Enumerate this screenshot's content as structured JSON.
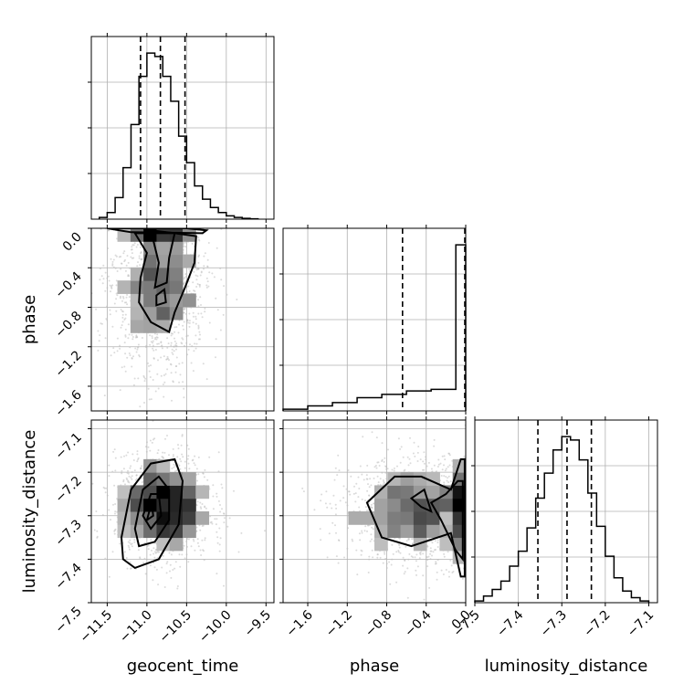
{
  "chart_data": {
    "type": "corner",
    "parameters": [
      "geocent_time",
      "phase",
      "luminosity_distance"
    ],
    "ranges": {
      "geocent_time": [
        -11.7,
        -9.4
      ],
      "phase": [
        -1.85,
        0.0
      ],
      "luminosity_distance": [
        -7.5,
        -7.08
      ]
    },
    "ticks": {
      "geocent_time": [
        -11.5,
        -11.0,
        -10.5,
        -10.0,
        -9.5
      ],
      "geocent_time_labels": [
        "−11.5",
        "−11.0",
        "−10.5",
        "−10.0",
        "−9.5"
      ],
      "phase": [
        -1.6,
        -1.2,
        -0.8,
        -0.4,
        0.0
      ],
      "phase_labels": [
        "−1.6",
        "−1.2",
        "−0.8",
        "−0.4",
        "0.0"
      ],
      "luminosity_distance": [
        -7.5,
        -7.4,
        -7.3,
        -7.2,
        -7.1
      ],
      "luminosity_distance_labels": [
        "−7.5",
        "−7.4",
        "−7.3",
        "−7.2",
        "−7.1"
      ]
    },
    "grid": true,
    "histograms": {
      "geocent_time": {
        "bin_edges": [
          -11.6,
          -11.5,
          -11.4,
          -11.3,
          -11.2,
          -11.1,
          -11.0,
          -10.9,
          -10.8,
          -10.7,
          -10.6,
          -10.5,
          -10.4,
          -10.3,
          -10.2,
          -10.1,
          -10.0,
          -9.9,
          -9.8,
          -9.7,
          -9.6
        ],
        "counts": [
          1,
          4,
          13,
          31,
          57,
          86,
          100,
          98,
          86,
          71,
          50,
          34,
          20,
          12,
          7,
          4,
          2,
          1,
          0.5,
          0.2
        ],
        "quantiles": [
          -11.08,
          -10.83,
          -10.52
        ]
      },
      "phase": {
        "bin_edges": [
          -1.85,
          -1.6,
          -1.35,
          -1.1,
          -0.85,
          -0.6,
          -0.35,
          -0.1,
          0.0
        ],
        "counts": [
          1,
          3,
          5,
          8,
          10,
          12,
          13,
          100
        ],
        "quantiles": [
          -0.64,
          0.0
        ]
      },
      "luminosity_distance": {
        "bin_edges": [
          -7.5,
          -7.48,
          -7.46,
          -7.44,
          -7.42,
          -7.4,
          -7.38,
          -7.36,
          -7.34,
          -7.32,
          -7.3,
          -7.28,
          -7.26,
          -7.24,
          -7.22,
          -7.2,
          -7.18,
          -7.16,
          -7.14,
          -7.12,
          -7.1
        ],
        "counts": [
          1,
          4,
          8,
          13,
          22,
          31,
          45,
          63,
          78,
          92,
          100,
          98,
          86,
          66,
          46,
          28,
          15,
          7,
          3,
          1
        ],
        "quantiles": [
          -7.355,
          -7.288,
          -7.232
        ]
      }
    },
    "scatter_2d": [
      {
        "x": "geocent_time",
        "y": "phase",
        "center": [
          -10.85,
          -0.55
        ],
        "spread": [
          0.3,
          0.45
        ],
        "n": 1400
      },
      {
        "x": "geocent_time",
        "y": "luminosity_distance",
        "center": [
          -10.8,
          -7.28
        ],
        "spread": [
          0.3,
          0.06
        ],
        "n": 1400
      },
      {
        "x": "phase",
        "y": "luminosity_distance",
        "center": [
          -0.45,
          -7.29
        ],
        "spread": [
          0.4,
          0.06
        ],
        "n": 1400
      }
    ],
    "contours": [
      {
        "x": "geocent_time",
        "y": "phase",
        "levels": [
          [
            [
              -11.5,
              -0.0
            ],
            [
              -11.2,
              -0.04
            ],
            [
              -10.3,
              -0.05
            ],
            [
              -10.25,
              -0.02
            ],
            [
              -10.5,
              0.0
            ]
          ],
          [
            [
              -11.15,
              -0.05
            ],
            [
              -11.0,
              -0.25
            ],
            [
              -11.08,
              -0.5
            ],
            [
              -11.1,
              -0.75
            ],
            [
              -10.95,
              -0.95
            ],
            [
              -10.72,
              -1.05
            ],
            [
              -10.65,
              -0.85
            ],
            [
              -10.52,
              -0.6
            ],
            [
              -10.4,
              -0.35
            ],
            [
              -10.38,
              -0.08
            ],
            [
              -10.65,
              -0.05
            ]
          ],
          [
            [
              -10.95,
              -0.02
            ],
            [
              -10.85,
              -0.35
            ],
            [
              -10.9,
              -0.6
            ],
            [
              -10.75,
              -0.55
            ],
            [
              -10.72,
              -0.3
            ],
            [
              -10.65,
              -0.05
            ]
          ],
          [
            [
              -10.88,
              -0.68
            ],
            [
              -10.78,
              -0.62
            ],
            [
              -10.76,
              -0.75
            ],
            [
              -10.88,
              -0.78
            ]
          ]
        ]
      },
      {
        "x": "geocent_time",
        "y": "luminosity_distance",
        "levels": [
          [
            [
              -11.32,
              -7.35
            ],
            [
              -11.2,
              -7.24
            ],
            [
              -10.95,
              -7.18
            ],
            [
              -10.65,
              -7.17
            ],
            [
              -10.55,
              -7.22
            ],
            [
              -10.6,
              -7.32
            ],
            [
              -10.85,
              -7.4
            ],
            [
              -11.15,
              -7.42
            ],
            [
              -11.3,
              -7.4
            ]
          ],
          [
            [
              -11.15,
              -7.33
            ],
            [
              -11.05,
              -7.24
            ],
            [
              -10.85,
              -7.21
            ],
            [
              -10.72,
              -7.24
            ],
            [
              -10.72,
              -7.31
            ],
            [
              -10.9,
              -7.36
            ],
            [
              -11.1,
              -7.37
            ]
          ],
          [
            [
              -11.05,
              -7.3
            ],
            [
              -10.95,
              -7.25
            ],
            [
              -10.85,
              -7.25
            ],
            [
              -10.82,
              -7.3
            ],
            [
              -10.95,
              -7.33
            ]
          ],
          [
            [
              -11.0,
              -7.31
            ],
            [
              -10.94,
              -7.27
            ],
            [
              -10.92,
              -7.3
            ]
          ]
        ]
      },
      {
        "x": "phase",
        "y": "luminosity_distance",
        "levels": [
          [
            [
              -1.0,
              -7.27
            ],
            [
              -0.72,
              -7.21
            ],
            [
              -0.45,
              -7.21
            ],
            [
              -0.15,
              -7.24
            ],
            [
              -0.05,
              -7.17
            ],
            [
              -0.01,
              -7.17
            ],
            [
              -0.01,
              -7.44
            ],
            [
              -0.05,
              -7.44
            ],
            [
              -0.15,
              -7.34
            ],
            [
              -0.55,
              -7.37
            ],
            [
              -0.85,
              -7.35
            ]
          ],
          [
            [
              -0.35,
              -7.27
            ],
            [
              -0.2,
              -7.25
            ],
            [
              -0.08,
              -7.22
            ],
            [
              -0.03,
              -7.22
            ],
            [
              -0.03,
              -7.4
            ],
            [
              -0.1,
              -7.38
            ],
            [
              -0.25,
              -7.31
            ]
          ],
          [
            [
              -0.55,
              -7.26
            ],
            [
              -0.42,
              -7.24
            ],
            [
              -0.35,
              -7.29
            ],
            [
              -0.45,
              -7.28
            ]
          ]
        ]
      }
    ]
  },
  "labels": {
    "geocent_time": "geocent_time",
    "phase": "phase",
    "luminosity_distance": "luminosity_distance"
  }
}
